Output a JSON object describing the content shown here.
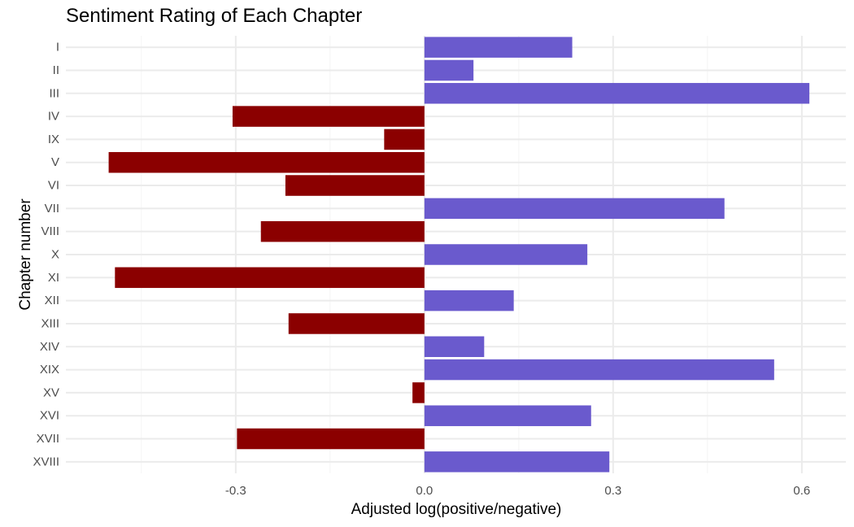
{
  "chart_data": {
    "type": "bar",
    "orientation": "horizontal",
    "title": "Sentiment Rating of Each Chapter",
    "xlabel": "Adjusted log(positive/negative)",
    "ylabel": "Chapter number",
    "xlim": [
      -0.57,
      0.67
    ],
    "x_ticks": [
      -0.3,
      0.0,
      0.3,
      0.6
    ],
    "x_tick_labels": [
      "-0.3",
      "0.0",
      "0.3",
      "0.6"
    ],
    "grid": true,
    "categories": [
      "I",
      "II",
      "III",
      "IV",
      "IX",
      "V",
      "VI",
      "VII",
      "VIII",
      "X",
      "XI",
      "XII",
      "XIII",
      "XIV",
      "XIX",
      "XV",
      "XVI",
      "XVII",
      "XVIII"
    ],
    "values": [
      0.235,
      0.078,
      0.612,
      -0.305,
      -0.064,
      -0.502,
      -0.221,
      0.477,
      -0.26,
      0.259,
      -0.492,
      0.142,
      -0.216,
      0.095,
      0.556,
      -0.019,
      0.265,
      -0.298,
      0.294
    ],
    "colors": {
      "positive": "#6a5acd",
      "negative": "#8b0000",
      "grid_major": "#ebebeb",
      "grid_minor": "#f5f5f5"
    }
  }
}
